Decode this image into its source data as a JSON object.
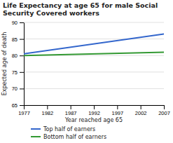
{
  "chart_data": {
    "type": "line",
    "title": "Life Expectancy at age 65 for male Social Security Covered workers",
    "xlabel": "Year reached age 65",
    "ylabel": "Expected age of death",
    "x": [
      1977,
      2007
    ],
    "series": [
      {
        "name": "Top half of earners",
        "color": "#3366cc",
        "values": [
          80.5,
          86.5
        ]
      },
      {
        "name": "Bottom half of earners",
        "color": "#339933",
        "values": [
          80.0,
          81.0
        ]
      }
    ],
    "xlim": [
      1977,
      2007
    ],
    "ylim": [
      65,
      90
    ],
    "xticks": [
      1977,
      1982,
      1987,
      1992,
      1997,
      2002,
      2007
    ],
    "yticks": [
      65,
      70,
      75,
      80,
      85,
      90
    ],
    "grid": true,
    "legend": "bottom"
  }
}
